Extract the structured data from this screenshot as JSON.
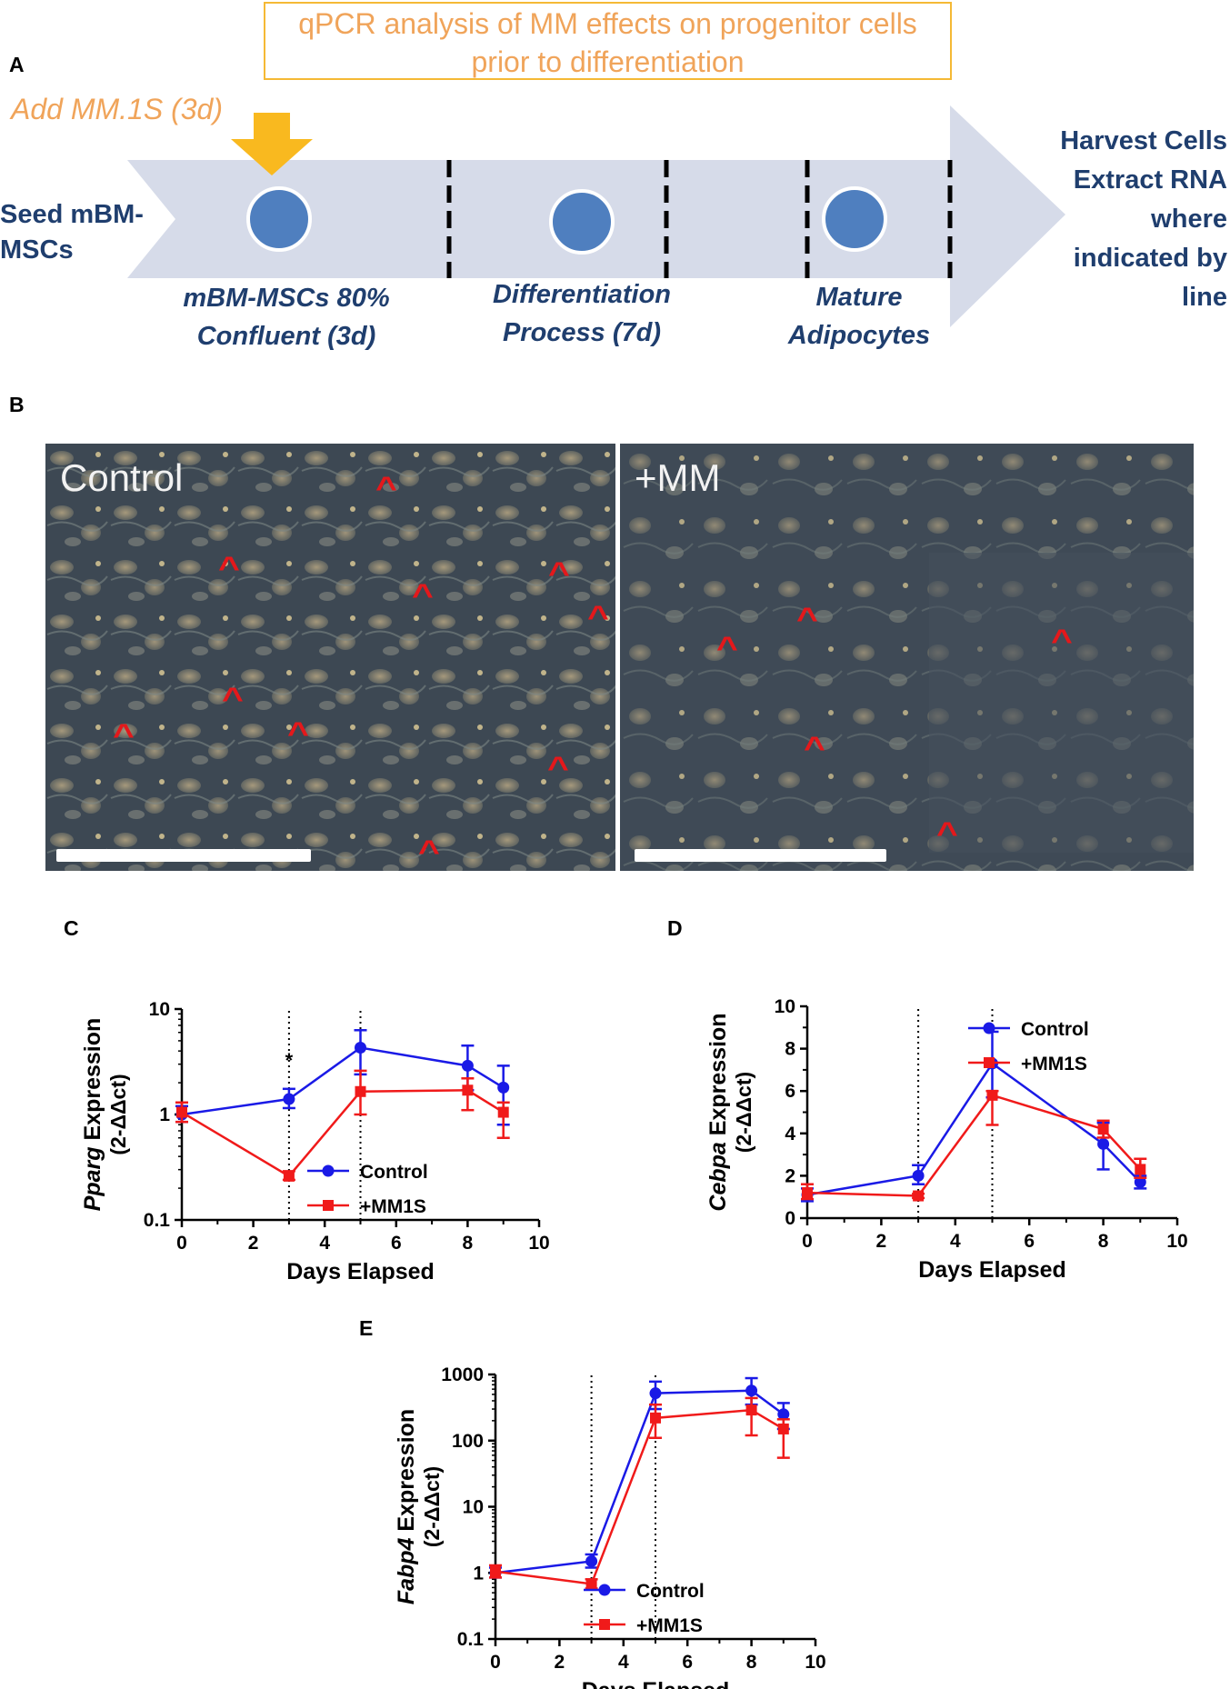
{
  "panel_a": {
    "label": "A",
    "qpcr_box": [
      "qPCR analysis of MM effects on progenitor cells",
      "prior to differentiation"
    ],
    "add_mm": "Add MM.1S (3d)",
    "seed": [
      "Seed mBM-",
      "MSCs"
    ],
    "stage1": [
      "mBM-MSCs 80%",
      "Confluent (3d)"
    ],
    "stage2": [
      "Differentiation",
      "Process (7d)"
    ],
    "stage3": [
      "Mature",
      "Adipocytes"
    ],
    "harvest": [
      "Harvest Cells",
      "Extract RNA",
      "where",
      "indicated by",
      "line"
    ],
    "colors": {
      "arrow": "#d6dbe9",
      "circle": "#4f7fbf",
      "marker": "#f9b91f",
      "text": "#1f3e6e",
      "box": "#f5b935"
    }
  },
  "panel_b": {
    "label": "B",
    "left_title": "Control",
    "right_title": "+MM"
  },
  "colors": {
    "control": "#1a1ae6",
    "mm1s": "#f01a1a"
  },
  "chart_data": [
    {
      "panel": "C",
      "type": "line",
      "ylabel_gene": "Pparg",
      "ylabel_suffix": "Expression",
      "ylabel_unit": "(2-ΔΔct)",
      "xlabel": "Days Elapsed",
      "yscale": "log",
      "xlim": [
        0,
        10
      ],
      "ylim": [
        0.1,
        10
      ],
      "xticks": [
        "0",
        "2",
        "4",
        "6",
        "8",
        "10"
      ],
      "yticks": [
        "0.1",
        "1",
        "10"
      ],
      "vlines": [
        3,
        5
      ],
      "annotation": "*",
      "legend": "bottom-right",
      "series": [
        {
          "name": "Control",
          "x": [
            0,
            3,
            5,
            8,
            9
          ],
          "y": [
            1.0,
            1.4,
            4.3,
            2.9,
            1.8
          ],
          "err_lo": [
            0.85,
            1.15,
            2.4,
            1.7,
            0.8
          ],
          "err_hi": [
            1.2,
            1.75,
            6.3,
            4.5,
            2.9
          ]
        },
        {
          "name": "+MM1S",
          "x": [
            0,
            3,
            5,
            8,
            9
          ],
          "y": [
            1.05,
            0.26,
            1.65,
            1.7,
            1.05
          ],
          "err_lo": [
            0.85,
            0.24,
            1.0,
            1.1,
            0.6
          ],
          "err_hi": [
            1.3,
            0.29,
            2.6,
            2.2,
            1.3
          ]
        }
      ]
    },
    {
      "panel": "D",
      "type": "line",
      "ylabel_gene": "Cebpa",
      "ylabel_suffix": "Expression",
      "ylabel_unit": "(2-ΔΔct)",
      "xlabel": "Days Elapsed",
      "yscale": "linear",
      "xlim": [
        0,
        10
      ],
      "ylim": [
        0,
        10
      ],
      "xticks": [
        "0",
        "2",
        "4",
        "6",
        "8",
        "10"
      ],
      "yticks": [
        "0",
        "2",
        "4",
        "6",
        "8",
        "10"
      ],
      "vlines": [
        3,
        5
      ],
      "legend": "top-right",
      "series": [
        {
          "name": "Control",
          "x": [
            0,
            3,
            5,
            8,
            9
          ],
          "y": [
            1.1,
            2.0,
            7.3,
            3.5,
            1.7
          ],
          "err_lo": [
            0.8,
            1.6,
            5.7,
            2.3,
            1.4
          ],
          "err_hi": [
            1.4,
            2.5,
            8.8,
            4.5,
            2.0
          ]
        },
        {
          "name": "+MM1S",
          "x": [
            0,
            3,
            5,
            8,
            9
          ],
          "y": [
            1.2,
            1.05,
            5.8,
            4.2,
            2.3
          ],
          "err_lo": [
            0.9,
            0.95,
            4.4,
            3.8,
            1.9
          ],
          "err_hi": [
            1.6,
            1.15,
            6.0,
            4.6,
            2.8
          ]
        }
      ]
    },
    {
      "panel": "E",
      "type": "line",
      "ylabel_gene": "Fabp4",
      "ylabel_suffix": "Expression",
      "ylabel_unit": "(2-ΔΔct)",
      "xlabel": "Days Elapsed",
      "yscale": "log",
      "xlim": [
        0,
        10
      ],
      "ylim": [
        0.1,
        1000
      ],
      "xticks": [
        "0",
        "2",
        "4",
        "6",
        "8",
        "10"
      ],
      "yticks": [
        "0.1",
        "1",
        "10",
        "100",
        "1000"
      ],
      "vlines": [
        3,
        5
      ],
      "legend": "bottom-right",
      "series": [
        {
          "name": "Control",
          "x": [
            0,
            3,
            5,
            8,
            9
          ],
          "y": [
            1.0,
            1.5,
            520,
            570,
            250
          ],
          "err_lo": [
            0.85,
            1.2,
            300,
            350,
            150
          ],
          "err_hi": [
            1.2,
            1.9,
            780,
            880,
            370
          ]
        },
        {
          "name": "+MM1S",
          "x": [
            0,
            3,
            5,
            8,
            9
          ],
          "y": [
            1.05,
            0.68,
            220,
            290,
            150
          ],
          "err_lo": [
            0.85,
            0.58,
            110,
            120,
            55
          ],
          "err_hi": [
            1.3,
            0.8,
            350,
            440,
            210
          ]
        }
      ]
    }
  ]
}
